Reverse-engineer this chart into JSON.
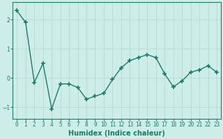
{
  "x": [
    0,
    1,
    2,
    3,
    4,
    5,
    6,
    7,
    8,
    9,
    10,
    11,
    12,
    13,
    14,
    15,
    16,
    17,
    18,
    19,
    20,
    21,
    22,
    23
  ],
  "y": [
    2.3,
    1.9,
    -0.15,
    0.5,
    -1.05,
    -0.2,
    -0.2,
    -0.32,
    -0.72,
    -0.62,
    -0.52,
    -0.05,
    0.35,
    0.6,
    0.7,
    0.8,
    0.7,
    0.15,
    -0.3,
    -0.1,
    0.2,
    0.28,
    0.42,
    0.2
  ],
  "line_color": "#1a7a6e",
  "marker": "+",
  "marker_size": 4,
  "xlabel": "Humidex (Indice chaleur)",
  "xlabel_fontsize": 7,
  "xlim": [
    -0.5,
    23.5
  ],
  "ylim": [
    -1.4,
    2.6
  ],
  "yticks": [
    -1,
    0,
    1,
    2
  ],
  "xtick_labels": [
    "0",
    "1",
    "2",
    "3",
    "4",
    "5",
    "6",
    "7",
    "8",
    "9",
    "10",
    "11",
    "12",
    "13",
    "14",
    "15",
    "16",
    "17",
    "18",
    "19",
    "20",
    "21",
    "22",
    "23"
  ],
  "bg_color": "#cdeee8",
  "grid_color": "#b8d8d4",
  "tick_fontsize": 5.5,
  "linewidth": 1.0
}
